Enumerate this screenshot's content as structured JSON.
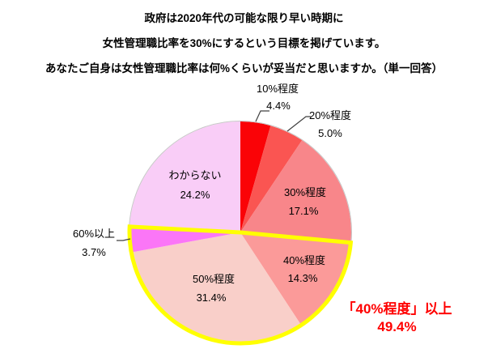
{
  "title": {
    "line1": "政府は2020年代の可能な限り早い時期に",
    "line2": "女性管理職比率を30%にするという目標を掲げています。",
    "line3": "あなたご自身は女性管理職比率は何%くらいが妥当だと思いますか。（単一回答）"
  },
  "chart_data": {
    "type": "pie",
    "direction": "clockwise",
    "start_angle_deg": 0,
    "categories": [
      "10%程度",
      "20%程度",
      "30%程度",
      "40%程度",
      "50%程度",
      "60%以上",
      "わからない"
    ],
    "values": [
      4.4,
      5.0,
      17.1,
      14.3,
      31.4,
      3.7,
      24.2
    ],
    "slices": [
      {
        "key": "10-percent",
        "label": "10%程度",
        "value": 4.4,
        "value_label": "4.4%",
        "color": "#FA0307",
        "label_placement": "outside"
      },
      {
        "key": "20-percent",
        "label": "20%程度",
        "value": 5.0,
        "value_label": "5.0%",
        "color": "#FA5552",
        "label_placement": "outside"
      },
      {
        "key": "30-percent",
        "label": "30%程度",
        "value": 17.1,
        "value_label": "17.1%",
        "color": "#F8868A",
        "label_placement": "inside"
      },
      {
        "key": "40-percent",
        "label": "40%程度",
        "value": 14.3,
        "value_label": "14.3%",
        "color": "#FB9A99",
        "label_placement": "inside"
      },
      {
        "key": "50-percent",
        "label": "50%程度",
        "value": 31.4,
        "value_label": "31.4%",
        "color": "#F9CFC9",
        "label_placement": "inside"
      },
      {
        "key": "60-percent-plus",
        "label": "60%以上",
        "value": 3.7,
        "value_label": "3.7%",
        "color": "#FB76F7",
        "label_placement": "outside"
      },
      {
        "key": "dont-know",
        "label": "わからない",
        "value": 24.2,
        "value_label": "24.2%",
        "color": "#F9CDF7",
        "label_placement": "inside"
      }
    ],
    "outline_color": "#C8C8C8",
    "leader_line_color": "#404040",
    "highlight": {
      "slices": [
        "40%程度",
        "50%程度",
        "60%以上"
      ],
      "outline_color": "#FFFF00",
      "annotation_line1": "「40%程度」以上",
      "annotation_line2": "49.4%",
      "annotation_color": "#FF0000"
    }
  }
}
